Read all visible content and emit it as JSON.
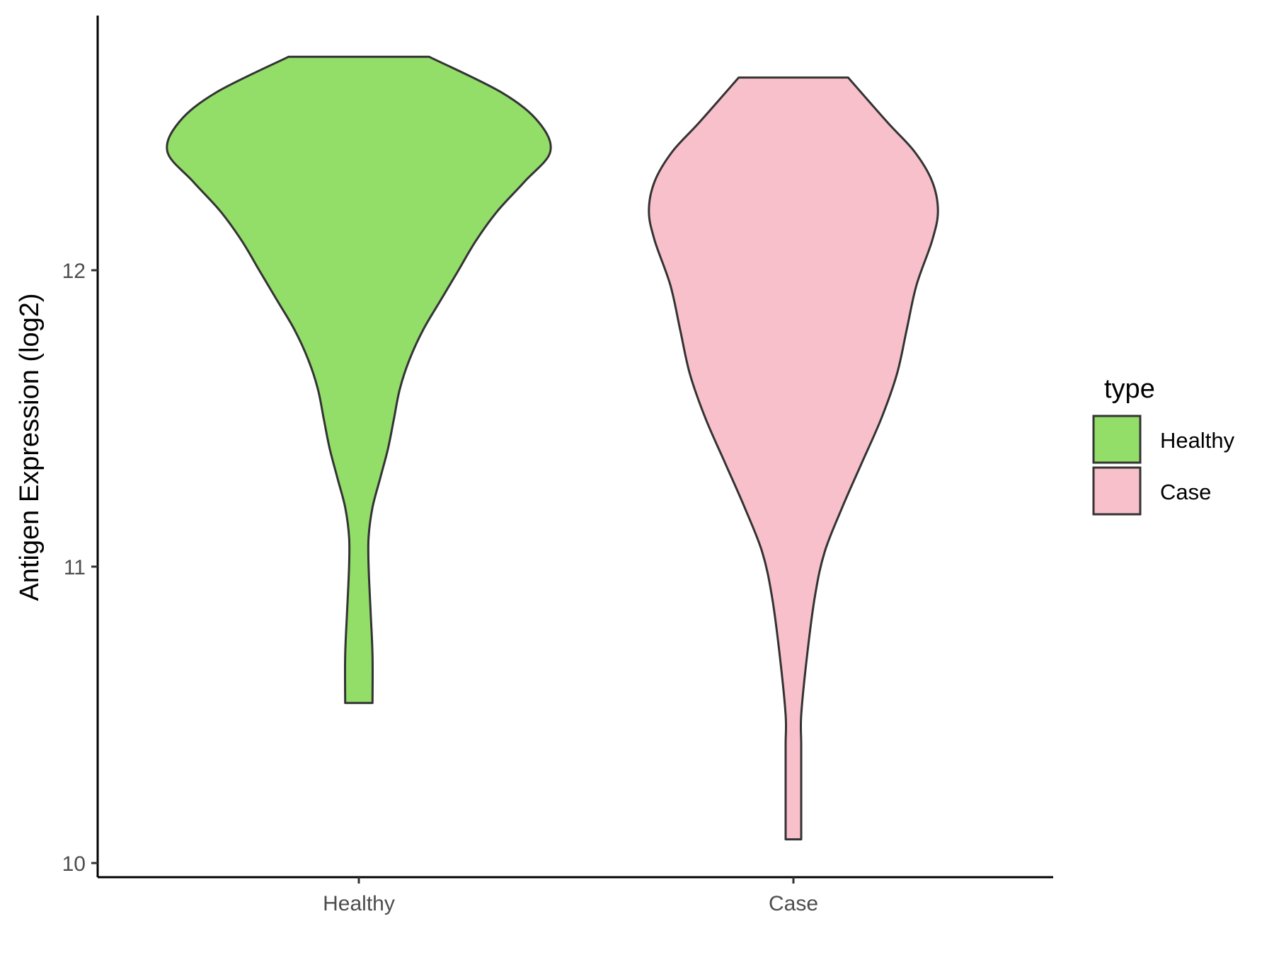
{
  "chart_data": {
    "type": "violin",
    "ylabel": "Antigen Expression (log2)",
    "xlabel": "",
    "ylim": [
      9.95,
      12.9
    ],
    "y_ticks": [
      10,
      11,
      12
    ],
    "y_tick_labels": [
      "10",
      "11",
      "12"
    ],
    "categories": [
      "Healthy",
      "Case"
    ],
    "legend": {
      "title": "type",
      "position": "right",
      "entries": [
        "Healthy",
        "Case"
      ]
    },
    "grid": false,
    "series": [
      {
        "name": "Healthy",
        "color": "#93DD69",
        "min": 10.54,
        "max": 12.72,
        "density": [
          [
            10.54,
            0.07
          ],
          [
            10.7,
            0.07
          ],
          [
            10.85,
            0.06
          ],
          [
            11.0,
            0.05
          ],
          [
            11.1,
            0.05
          ],
          [
            11.2,
            0.07
          ],
          [
            11.3,
            0.11
          ],
          [
            11.4,
            0.15
          ],
          [
            11.5,
            0.18
          ],
          [
            11.6,
            0.21
          ],
          [
            11.7,
            0.26
          ],
          [
            11.8,
            0.33
          ],
          [
            11.9,
            0.42
          ],
          [
            12.0,
            0.51
          ],
          [
            12.1,
            0.6
          ],
          [
            12.2,
            0.71
          ],
          [
            12.3,
            0.85
          ],
          [
            12.4,
            0.98
          ],
          [
            12.5,
            0.92
          ],
          [
            12.6,
            0.73
          ],
          [
            12.72,
            0.36
          ]
        ]
      },
      {
        "name": "Case",
        "color": "#F8C0CB",
        "min": 10.08,
        "max": 12.65,
        "density": [
          [
            10.08,
            0.04
          ],
          [
            10.25,
            0.04
          ],
          [
            10.4,
            0.04
          ],
          [
            10.5,
            0.04
          ],
          [
            10.7,
            0.07
          ],
          [
            10.9,
            0.11
          ],
          [
            11.05,
            0.16
          ],
          [
            11.2,
            0.25
          ],
          [
            11.35,
            0.35
          ],
          [
            11.5,
            0.45
          ],
          [
            11.65,
            0.53
          ],
          [
            11.8,
            0.58
          ],
          [
            11.95,
            0.63
          ],
          [
            12.1,
            0.71
          ],
          [
            12.2,
            0.74
          ],
          [
            12.3,
            0.71
          ],
          [
            12.4,
            0.62
          ],
          [
            12.5,
            0.48
          ],
          [
            12.65,
            0.28
          ]
        ]
      }
    ]
  }
}
